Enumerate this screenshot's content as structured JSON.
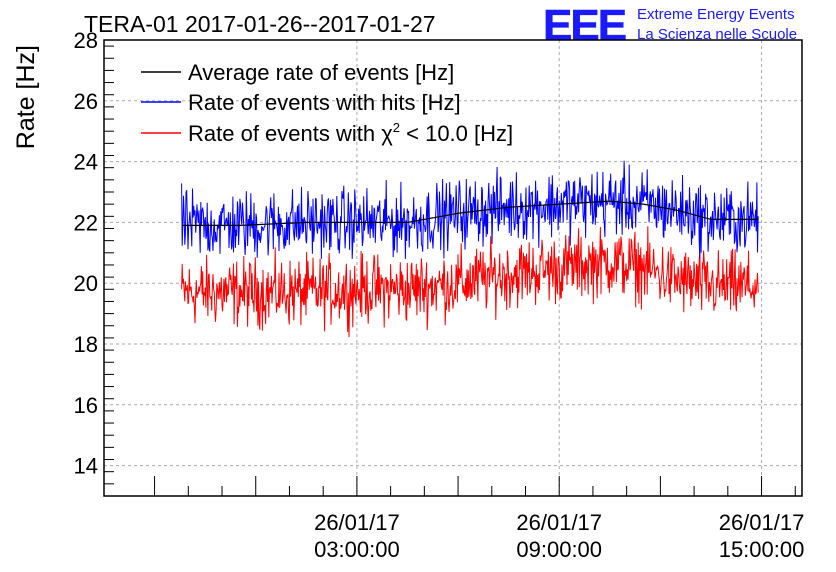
{
  "chart_data": {
    "type": "line",
    "title": "TERA-01 2017-01-26--2017-01-27",
    "xlabel": "",
    "ylabel": "Rate [Hz]",
    "ylim": [
      13,
      28
    ],
    "y_ticks": [
      14,
      16,
      18,
      20,
      22,
      24,
      26,
      28
    ],
    "x_unit": "hours since 2017-01-26 00:00:00",
    "xlim": [
      -4.5,
      16.2
    ],
    "x_ticks": [
      {
        "x": 3,
        "date": "26/01/17",
        "time": "03:00:00"
      },
      {
        "x": 9,
        "date": "26/01/17",
        "time": "09:00:00"
      },
      {
        "x": 15,
        "date": "26/01/17",
        "time": "15:00:00"
      }
    ],
    "grid": true,
    "legend_position": "top-left",
    "data_x_range": [
      -2.2,
      14.9
    ],
    "series": [
      {
        "name": "Average rate of events [Hz]",
        "color": "#000000",
        "x": [
          -2.2,
          -0.5,
          1.5,
          3.0,
          4.5,
          6.0,
          7.5,
          9.0,
          10.5,
          11.5,
          12.5,
          13.5,
          14.9
        ],
        "values": [
          21.9,
          21.9,
          22.0,
          22.0,
          22.0,
          22.3,
          22.5,
          22.6,
          22.7,
          22.6,
          22.4,
          22.1,
          22.1
        ]
      },
      {
        "name": "Rate of events with hits [Hz]",
        "color": "#0000ff",
        "x": [
          -2.2,
          -0.5,
          1.5,
          3.0,
          4.5,
          6.0,
          7.5,
          9.0,
          10.5,
          11.5,
          12.5,
          13.5,
          14.9
        ],
        "values": [
          21.9,
          21.9,
          22.0,
          22.0,
          22.0,
          22.3,
          22.5,
          22.6,
          22.7,
          22.6,
          22.4,
          22.1,
          22.1
        ],
        "noise_amplitude": 0.55,
        "max": 24.9,
        "min": 20.8
      },
      {
        "name": "Rate of events with χ² < 10.0 [Hz]",
        "color": "#ff0000",
        "x": [
          -2.2,
          -0.5,
          1.5,
          3.0,
          4.5,
          6.0,
          7.5,
          9.0,
          10.5,
          11.5,
          12.5,
          13.5,
          14.9
        ],
        "values": [
          19.7,
          19.7,
          19.7,
          19.8,
          19.8,
          20.0,
          20.3,
          20.5,
          20.7,
          20.5,
          20.1,
          19.9,
          19.9
        ],
        "noise_amplitude": 0.55,
        "max": 22.1,
        "min": 18.1
      }
    ],
    "legend": [
      {
        "label_main": "Average rate of events [Hz]",
        "color": "#000000"
      },
      {
        "label_main": "Rate of events with hits [Hz]",
        "color": "#0000ff"
      },
      {
        "label_pre": "Rate of events with ",
        "label_sym": "χ",
        "label_sup": "2",
        "label_post": " < 10.0 [Hz]",
        "color": "#ff0000"
      }
    ]
  },
  "logo": {
    "mark": "EEE",
    "line1": "Extreme Energy Events",
    "line2": "La Scienza nelle Scuole",
    "color": "#1a1aff"
  }
}
